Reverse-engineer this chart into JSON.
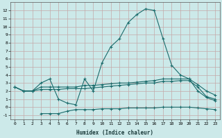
{
  "xlabel": "Humidex (Indice chaleur)",
  "bg_color": "#cce9e9",
  "grid_color": "#c4a8a8",
  "line_color": "#1a6b6b",
  "x_values": [
    0,
    1,
    2,
    3,
    4,
    5,
    6,
    7,
    8,
    9,
    10,
    11,
    12,
    13,
    14,
    15,
    16,
    17,
    18,
    19,
    20,
    21,
    22,
    23
  ],
  "line1": [
    2.5,
    2.0,
    2.0,
    3.0,
    3.5,
    1.0,
    0.5,
    0.3,
    3.5,
    2.0,
    5.5,
    7.5,
    8.5,
    10.5,
    11.5,
    12.2,
    12.0,
    8.5,
    5.2,
    4.0,
    3.5,
    2.0,
    1.2,
    0.8
  ],
  "line2": [
    2.5,
    2.0,
    2.0,
    2.5,
    2.5,
    2.5,
    2.5,
    2.5,
    2.7,
    2.7,
    2.8,
    2.9,
    3.0,
    3.0,
    3.1,
    3.2,
    3.3,
    3.5,
    3.5,
    3.5,
    3.5,
    2.8,
    2.0,
    1.5
  ],
  "line3": [
    2.5,
    2.0,
    2.0,
    2.2,
    2.2,
    2.2,
    2.3,
    2.3,
    2.3,
    2.4,
    2.5,
    2.6,
    2.7,
    2.8,
    2.9,
    3.0,
    3.0,
    3.2,
    3.2,
    3.3,
    3.3,
    2.5,
    1.3,
    1.0
  ],
  "line4": [
    null,
    null,
    null,
    -0.8,
    -0.8,
    -0.8,
    -0.5,
    -0.3,
    -0.3,
    -0.3,
    -0.2,
    -0.2,
    -0.2,
    -0.1,
    -0.1,
    -0.1,
    -0.1,
    0.0,
    0.0,
    0.0,
    0.0,
    -0.1,
    -0.2,
    -0.3
  ],
  "ylim": [
    -1.5,
    13.0
  ],
  "xlim": [
    -0.5,
    23.5
  ],
  "yticks": [
    -1,
    0,
    1,
    2,
    3,
    4,
    5,
    6,
    7,
    8,
    9,
    10,
    11,
    12
  ],
  "xticks": [
    0,
    1,
    2,
    3,
    4,
    5,
    6,
    7,
    8,
    9,
    10,
    11,
    12,
    13,
    14,
    15,
    16,
    17,
    18,
    19,
    20,
    21,
    22,
    23
  ]
}
